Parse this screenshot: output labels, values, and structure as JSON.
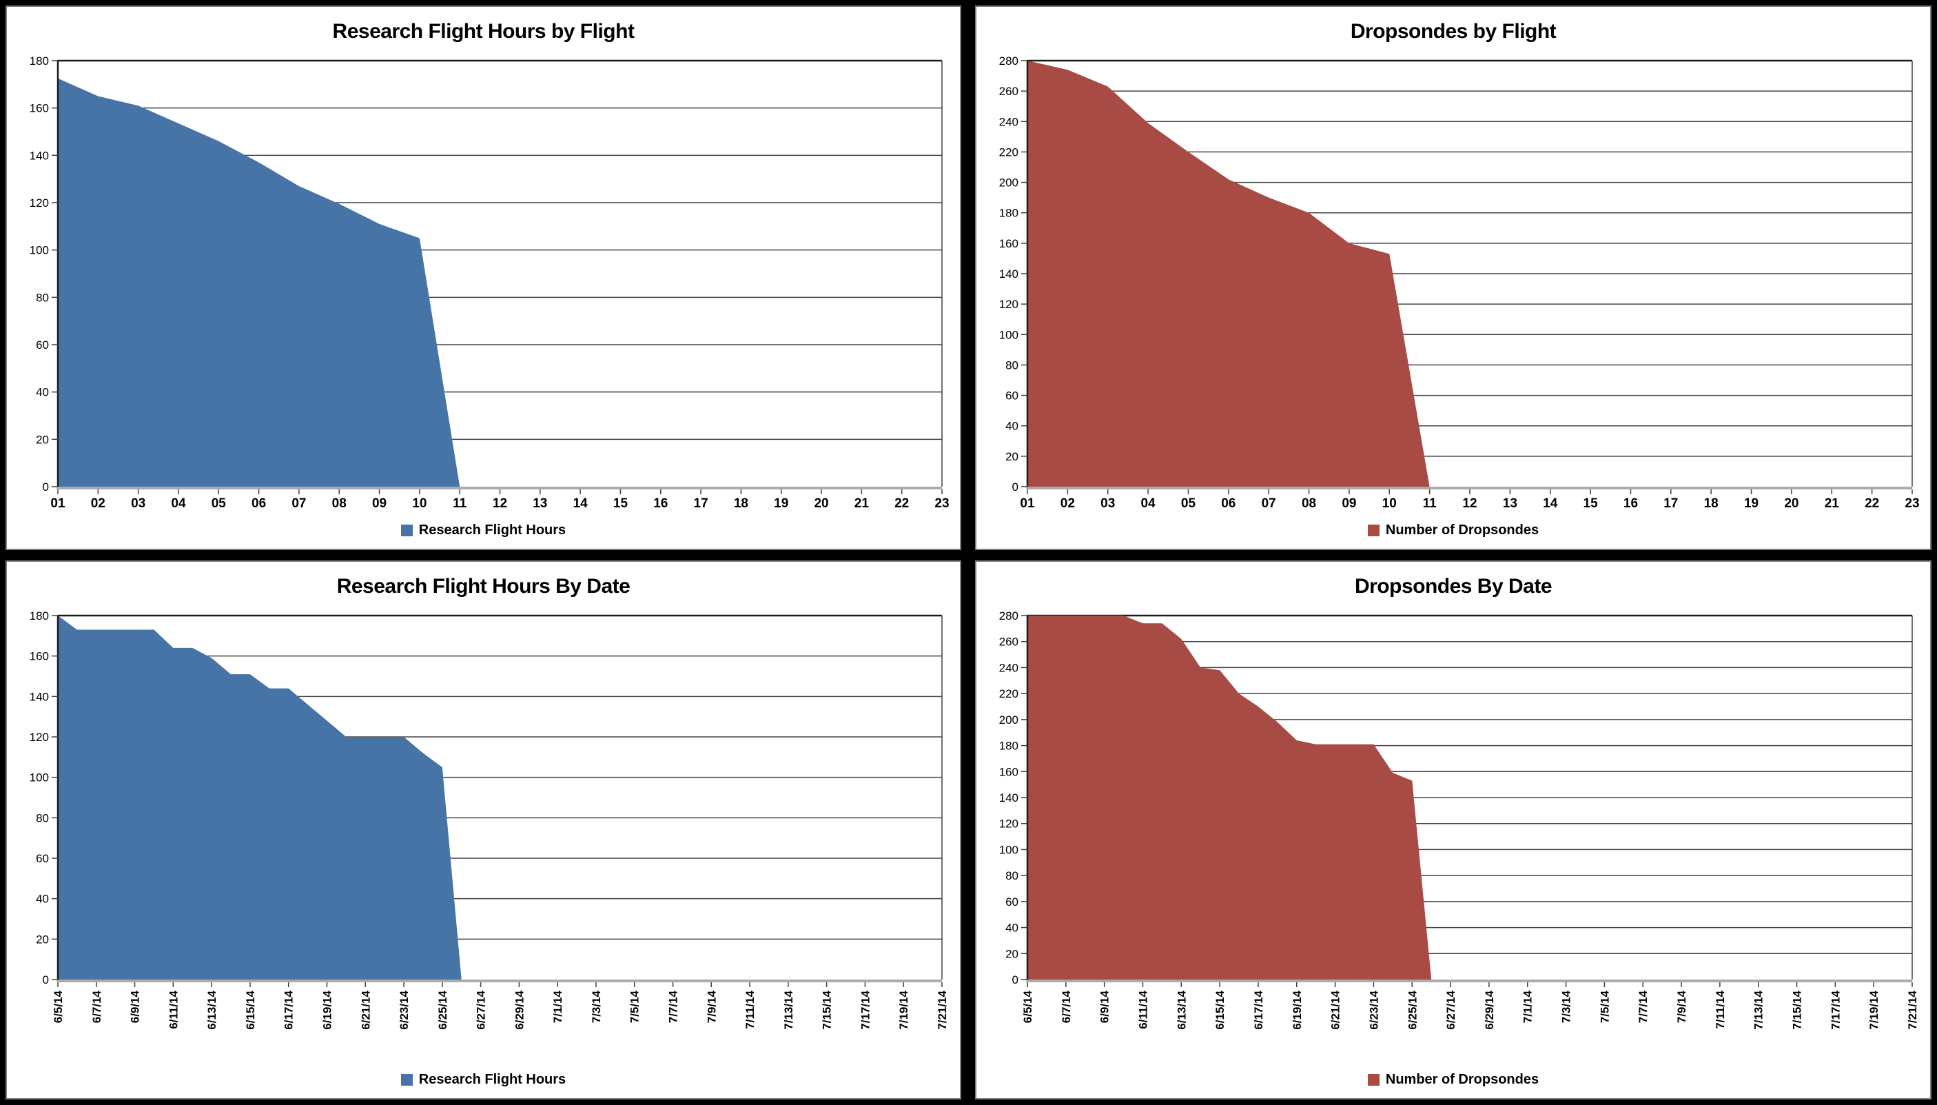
{
  "chart_data": [
    {
      "type": "area",
      "title": "Research Flight Hours by Flight",
      "legend_label": "Research Flight Hours",
      "color": "#4774A7",
      "ymax": 180,
      "ystep": 20,
      "label_every": 1,
      "label_rotation": 0,
      "categories": [
        "01",
        "02",
        "03",
        "04",
        "05",
        "06",
        "07",
        "08",
        "09",
        "10",
        "11",
        "12",
        "13",
        "14",
        "15",
        "16",
        "17",
        "18",
        "19",
        "20",
        "21",
        "22",
        "23"
      ],
      "values": [
        172.5,
        165,
        161,
        153.5,
        146,
        137,
        127,
        119.5,
        111,
        105,
        0,
        0,
        0,
        0,
        0,
        0,
        0,
        0,
        0,
        0,
        0,
        0,
        0
      ]
    },
    {
      "type": "area",
      "title": "Dropsondes by Flight",
      "legend_label": "Number of Dropsondes",
      "color": "#A84B44",
      "ymax": 280,
      "ystep": 20,
      "label_every": 1,
      "label_rotation": 0,
      "categories": [
        "01",
        "02",
        "03",
        "04",
        "05",
        "06",
        "07",
        "08",
        "09",
        "10",
        "11",
        "12",
        "13",
        "14",
        "15",
        "16",
        "17",
        "18",
        "19",
        "20",
        "21",
        "22",
        "23"
      ],
      "values": [
        280,
        274,
        263,
        239,
        220,
        202,
        190,
        180,
        160,
        153,
        0,
        0,
        0,
        0,
        0,
        0,
        0,
        0,
        0,
        0,
        0,
        0,
        0
      ]
    },
    {
      "type": "area",
      "title": "Research Flight Hours By Date",
      "legend_label": "Research Flight Hours",
      "color": "#4774A7",
      "ymax": 180,
      "ystep": 20,
      "label_every": 2,
      "label_rotation": -90,
      "categories": [
        "6/5/14",
        "6/6/14",
        "6/7/14",
        "6/8/14",
        "6/9/14",
        "6/10/14",
        "6/11/14",
        "6/12/14",
        "6/13/14",
        "6/14/14",
        "6/15/14",
        "6/16/14",
        "6/17/14",
        "6/18/14",
        "6/19/14",
        "6/20/14",
        "6/21/14",
        "6/22/14",
        "6/23/14",
        "6/24/14",
        "6/25/14",
        "6/26/14",
        "6/27/14",
        "6/28/14",
        "6/29/14",
        "6/30/14",
        "7/1/14",
        "7/2/14",
        "7/3/14",
        "7/4/14",
        "7/5/14",
        "7/6/14",
        "7/7/14",
        "7/8/14",
        "7/9/14",
        "7/10/14",
        "7/11/14",
        "7/12/14",
        "7/13/14",
        "7/14/14",
        "7/15/14",
        "7/16/14",
        "7/17/14",
        "7/18/14",
        "7/19/14",
        "7/20/14",
        "7/21/14"
      ],
      "values": [
        180,
        173,
        173,
        173,
        173,
        173,
        164,
        164,
        159,
        151,
        151,
        144,
        144,
        136,
        128,
        120,
        120,
        120,
        120,
        112,
        105,
        0,
        0,
        0,
        0,
        0,
        0,
        0,
        0,
        0,
        0,
        0,
        0,
        0,
        0,
        0,
        0,
        0,
        0,
        0,
        0,
        0,
        0,
        0,
        0,
        0,
        0
      ]
    },
    {
      "type": "area",
      "title": "Dropsondes By Date",
      "legend_label": "Number of Dropsondes",
      "color": "#A84B44",
      "ymax": 280,
      "ystep": 20,
      "label_every": 2,
      "label_rotation": -90,
      "categories": [
        "6/5/14",
        "6/6/14",
        "6/7/14",
        "6/8/14",
        "6/9/14",
        "6/10/14",
        "6/11/14",
        "6/12/14",
        "6/13/14",
        "6/14/14",
        "6/15/14",
        "6/16/14",
        "6/17/14",
        "6/18/14",
        "6/19/14",
        "6/20/14",
        "6/21/14",
        "6/22/14",
        "6/23/14",
        "6/24/14",
        "6/25/14",
        "6/26/14",
        "6/27/14",
        "6/28/14",
        "6/29/14",
        "6/30/14",
        "7/1/14",
        "7/2/14",
        "7/3/14",
        "7/4/14",
        "7/5/14",
        "7/6/14",
        "7/7/14",
        "7/8/14",
        "7/9/14",
        "7/10/14",
        "7/11/14",
        "7/12/14",
        "7/13/14",
        "7/14/14",
        "7/15/14",
        "7/16/14",
        "7/17/14",
        "7/18/14",
        "7/19/14",
        "7/20/14",
        "7/21/14"
      ],
      "values": [
        280,
        280,
        280,
        280,
        280,
        280,
        274,
        274,
        262,
        240,
        238,
        220,
        210,
        198,
        184,
        181,
        181,
        181,
        181,
        159,
        153,
        0,
        0,
        0,
        0,
        0,
        0,
        0,
        0,
        0,
        0,
        0,
        0,
        0,
        0,
        0,
        0,
        0,
        0,
        0,
        0,
        0,
        0,
        0,
        0,
        0,
        0
      ]
    }
  ],
  "style": {
    "gridline_color": "#444444",
    "frame_color": "#1a1a1a",
    "baseline_color": "#ababab",
    "tick_color": "#404040"
  }
}
